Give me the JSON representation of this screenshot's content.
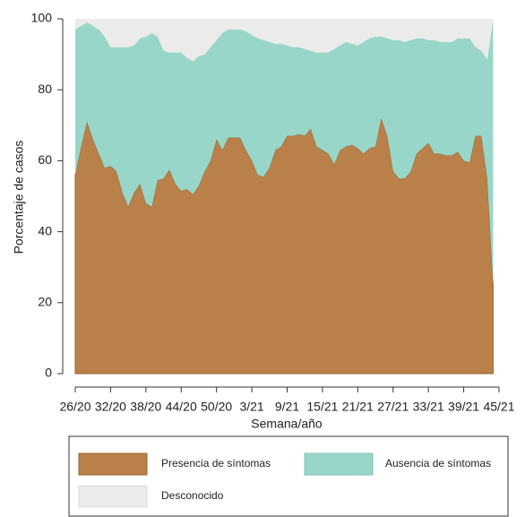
{
  "chart_data": {
    "type": "area",
    "stacked": true,
    "x_label": "Semana/año",
    "y_label": "Porcentaje de casos",
    "categories": [
      "26/20",
      null,
      null,
      null,
      null,
      null,
      "32/20",
      null,
      null,
      null,
      null,
      null,
      "38/20",
      null,
      null,
      null,
      null,
      null,
      "44/20",
      null,
      null,
      null,
      null,
      null,
      "50/20",
      null,
      null,
      null,
      null,
      null,
      "3/21",
      null,
      null,
      null,
      null,
      null,
      "9/21",
      null,
      null,
      null,
      null,
      null,
      "15/21",
      null,
      null,
      null,
      null,
      null,
      "21/21",
      null,
      null,
      null,
      null,
      null,
      "27/21",
      null,
      null,
      null,
      null,
      null,
      "33/21",
      null,
      null,
      null,
      null,
      null,
      "39/21",
      null,
      null,
      null,
      null,
      null,
      "45/21"
    ],
    "series": [
      {
        "name": "Presencia de síntomas",
        "color": "#b98149",
        "values": [
          56,
          64,
          71,
          66,
          62,
          58,
          58.5,
          57,
          51,
          47,
          51,
          53.5,
          48,
          47,
          54.5,
          55,
          57.5,
          53.5,
          51.5,
          52,
          50.5,
          53,
          57,
          60,
          66,
          63,
          66.5,
          66.5,
          66.5,
          63,
          60,
          56,
          55.5,
          58,
          63,
          64,
          67,
          67,
          67.5,
          67,
          69,
          64,
          63,
          62,
          59,
          63,
          64,
          64.5,
          63.5,
          62,
          63.5,
          64,
          72,
          67,
          57,
          55,
          55,
          57,
          62,
          63.5,
          65,
          62,
          62,
          61.5,
          61.5,
          62.5,
          60,
          59.5,
          67,
          67,
          55,
          25,
          null
        ]
      },
      {
        "name": "Ausencia de síntomas",
        "color": "#98d6c9",
        "values": [
          41,
          34,
          28,
          32,
          35,
          37,
          33.5,
          35,
          41,
          45,
          41.5,
          41,
          47,
          49,
          40.5,
          36,
          33,
          37,
          39,
          37,
          37.5,
          36.5,
          33,
          32,
          28,
          33,
          30.5,
          30.5,
          30.5,
          33.5,
          35.5,
          38.5,
          38.5,
          35.5,
          30,
          29,
          25.5,
          25,
          24.5,
          24.5,
          22,
          26.5,
          27.5,
          28.5,
          32.5,
          29.5,
          29.5,
          28.5,
          29,
          31.5,
          31,
          31,
          23,
          27.5,
          37,
          39,
          38.5,
          37,
          32.5,
          31,
          29,
          32,
          31.5,
          32,
          32,
          32,
          34.5,
          35,
          25,
          24,
          33.5,
          75,
          null
        ]
      },
      {
        "name": "Desconocido",
        "color": "#ebebeb",
        "values": [
          3,
          2,
          1,
          2,
          3,
          5,
          8,
          8,
          8,
          8,
          7.5,
          5.5,
          5,
          4,
          5,
          9,
          9.5,
          9.5,
          9.5,
          11,
          12,
          10.5,
          10,
          8,
          6,
          4,
          3,
          3,
          3,
          3.5,
          4.5,
          5.5,
          6,
          6.5,
          7,
          7,
          7.5,
          8,
          8,
          8.5,
          9,
          9.5,
          9.5,
          9.5,
          8.5,
          7.5,
          6.5,
          7,
          7.5,
          6.5,
          5.5,
          5,
          5,
          5.5,
          6,
          6,
          6.5,
          6,
          5.5,
          5.5,
          6,
          6,
          6.5,
          6.5,
          6.5,
          5.5,
          5.5,
          5.5,
          8,
          9,
          11.5,
          0,
          null
        ]
      }
    ],
    "ylim": [
      0,
      100
    ],
    "yticks": [
      0,
      20,
      40,
      60,
      80,
      100
    ],
    "legend": "bottom"
  }
}
